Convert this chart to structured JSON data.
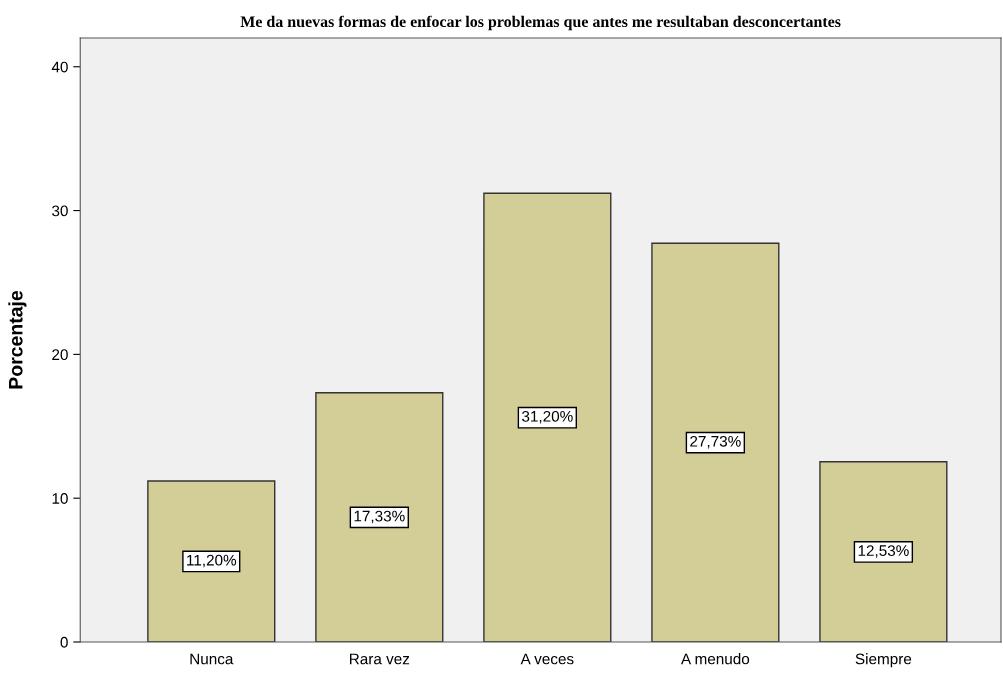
{
  "chart_data": {
    "type": "bar",
    "title": "Me da nuevas formas de enfocar los problemas que antes me resultaban desconcertantes",
    "ylabel": "Porcentaje",
    "categories": [
      "Nunca",
      "Rara vez",
      "A veces",
      "A menudo",
      "Siempre"
    ],
    "values": [
      11.2,
      17.33,
      31.2,
      27.73,
      12.53
    ],
    "value_labels": [
      "11,20%",
      "17,33%",
      "31,20%",
      "27,73%",
      "12,53%"
    ],
    "color": "#d3ce97",
    "ylim": [
      0,
      42
    ],
    "yticks": [
      0,
      10,
      20,
      30,
      40
    ],
    "grid": false
  }
}
